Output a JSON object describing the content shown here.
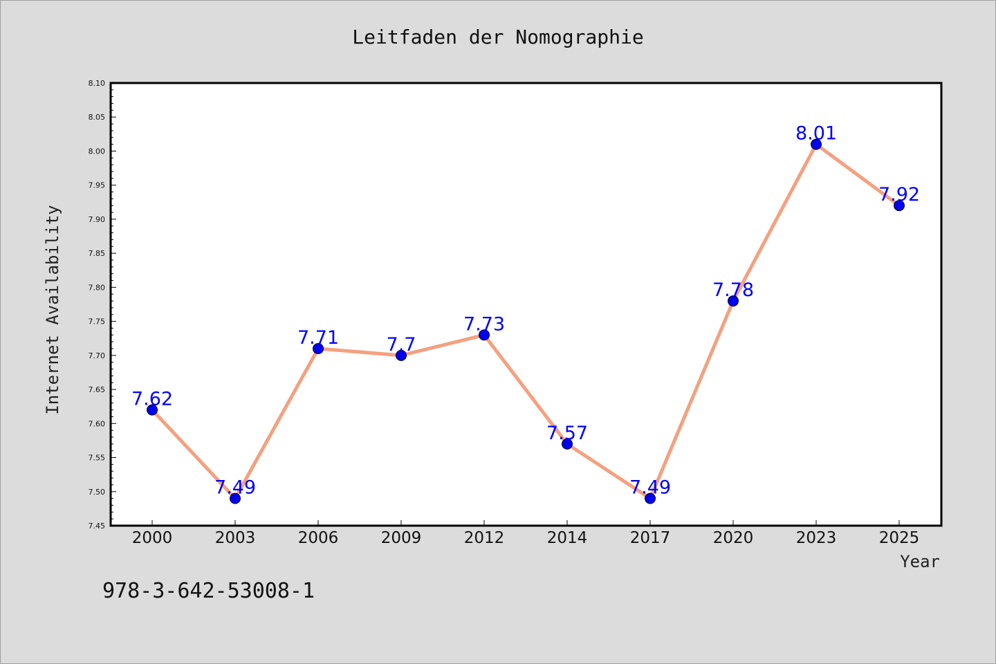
{
  "chart_data": {
    "type": "line",
    "title": "Leitfaden der Nomographie",
    "xlabel": "Year",
    "ylabel": "Internet Availability",
    "categories": [
      "2000",
      "2003",
      "2006",
      "2009",
      "2012",
      "2014",
      "2017",
      "2020",
      "2023",
      "2025"
    ],
    "values": [
      7.62,
      7.49,
      7.71,
      7.7,
      7.73,
      7.57,
      7.49,
      7.78,
      8.01,
      7.92
    ],
    "data_labels": [
      "7.62",
      "7.49",
      "7.71",
      "7.7",
      "7.73",
      "7.57",
      "7.49",
      "7.78",
      "8.01",
      "7.92"
    ],
    "ylim": [
      7.45,
      8.1
    ],
    "yticks": [
      "7.45",
      "7.50",
      "7.55",
      "7.60",
      "7.65",
      "7.70",
      "7.75",
      "7.80",
      "7.85",
      "7.90",
      "7.95",
      "8.00",
      "8.05",
      "8.10"
    ],
    "grid": false,
    "line_color": "#f5a07f",
    "marker_color": "#0000ee",
    "label_color": "#0000ff"
  },
  "footer_text": "978-3-642-53008-1"
}
